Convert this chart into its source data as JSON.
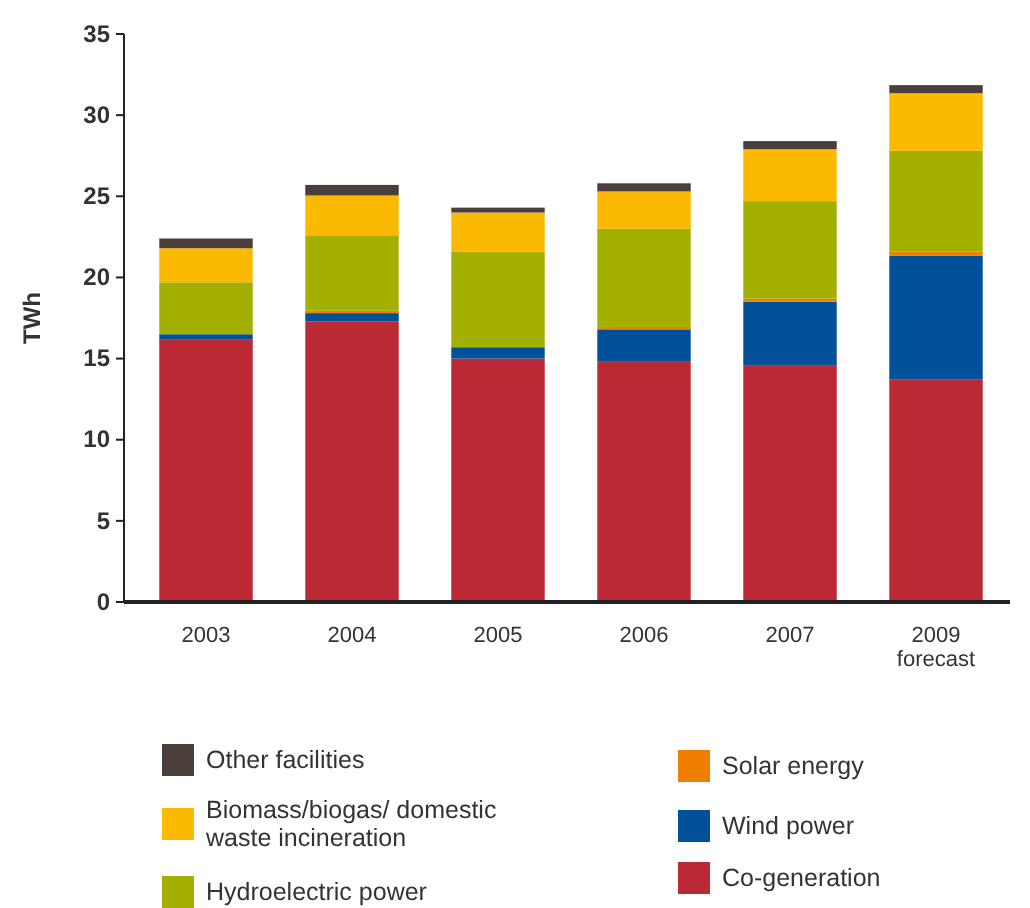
{
  "chart_data": {
    "type": "bar",
    "stacked": true,
    "ylabel": "TWh",
    "categories": [
      "2003",
      "2004",
      "2005",
      "2006",
      "2007",
      "2009\nforecast"
    ],
    "ylim": [
      0,
      35
    ],
    "yticks": [
      0,
      5,
      10,
      15,
      20,
      25,
      30,
      35
    ],
    "grid": false,
    "legend": "bottom",
    "series": [
      {
        "name": "Co-generation",
        "color": "#bb2a34",
        "values": [
          16.2,
          17.3,
          15.0,
          14.8,
          14.6,
          13.7
        ]
      },
      {
        "name": "Wind power",
        "color": "#00519a",
        "values": [
          0.3,
          0.5,
          0.7,
          2.0,
          3.9,
          7.65
        ]
      },
      {
        "name": "Solar energy",
        "color": "#ee7d00",
        "values": [
          0,
          0.15,
          0,
          0.15,
          0.2,
          0.25
        ]
      },
      {
        "name": "Hydroelectric power",
        "color": "#a3b000",
        "values": [
          3.2,
          4.65,
          5.9,
          6.05,
          6.0,
          6.2
        ]
      },
      {
        "name": "Biomass/biogas/ domestic waste incineration",
        "color": "#fbb900",
        "values": [
          2.1,
          2.45,
          2.4,
          2.3,
          3.2,
          3.55
        ]
      },
      {
        "name": "Other facilities",
        "color": "#4a3f3a",
        "values": [
          0.6,
          0.65,
          0.3,
          0.5,
          0.5,
          0.5
        ]
      }
    ]
  }
}
